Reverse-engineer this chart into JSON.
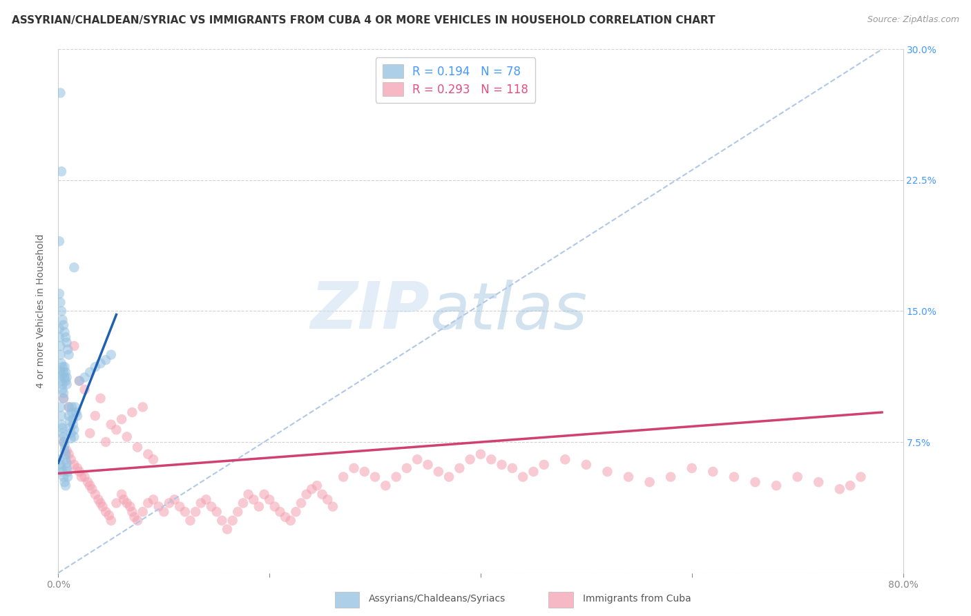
{
  "title": "ASSYRIAN/CHALDEAN/SYRIAC VS IMMIGRANTS FROM CUBA 4 OR MORE VEHICLES IN HOUSEHOLD CORRELATION CHART",
  "source": "Source: ZipAtlas.com",
  "ylabel": "4 or more Vehicles in Household",
  "legend_entry_blue": "R = 0.194   N = 78",
  "legend_entry_pink": "R = 0.293   N = 118",
  "watermark_zip": "ZIP",
  "watermark_atlas": "atlas",
  "blue_color": "#92c0e0",
  "pink_color": "#f4a0b0",
  "blue_line_color": "#2060b0",
  "pink_line_color": "#d04070",
  "dashed_line_color": "#b0c8e8",
  "background_color": "#ffffff",
  "grid_color": "#cccccc",
  "blue_scatter_x": [
    0.002,
    0.003,
    0.003,
    0.004,
    0.004,
    0.005,
    0.005,
    0.006,
    0.006,
    0.007,
    0.007,
    0.008,
    0.008,
    0.009,
    0.009,
    0.01,
    0.01,
    0.011,
    0.011,
    0.012,
    0.012,
    0.013,
    0.013,
    0.014,
    0.014,
    0.015,
    0.015,
    0.016,
    0.017,
    0.018,
    0.002,
    0.003,
    0.003,
    0.004,
    0.004,
    0.005,
    0.005,
    0.006,
    0.007,
    0.008,
    0.001,
    0.001,
    0.002,
    0.002,
    0.003,
    0.004,
    0.005,
    0.006,
    0.007,
    0.008,
    0.001,
    0.002,
    0.003,
    0.004,
    0.005,
    0.006,
    0.007,
    0.008,
    0.009,
    0.01,
    0.001,
    0.002,
    0.003,
    0.004,
    0.005,
    0.006,
    0.007,
    0.02,
    0.025,
    0.03,
    0.035,
    0.04,
    0.045,
    0.05,
    0.002,
    0.003,
    0.001,
    0.015
  ],
  "blue_scatter_y": [
    0.095,
    0.09,
    0.085,
    0.083,
    0.08,
    0.078,
    0.075,
    0.073,
    0.07,
    0.068,
    0.065,
    0.063,
    0.06,
    0.058,
    0.055,
    0.095,
    0.09,
    0.087,
    0.083,
    0.08,
    0.077,
    0.095,
    0.092,
    0.088,
    0.085,
    0.082,
    0.078,
    0.095,
    0.092,
    0.09,
    0.115,
    0.113,
    0.11,
    0.108,
    0.105,
    0.103,
    0.1,
    0.118,
    0.115,
    0.112,
    0.14,
    0.135,
    0.13,
    0.125,
    0.12,
    0.118,
    0.115,
    0.112,
    0.11,
    0.108,
    0.16,
    0.155,
    0.15,
    0.145,
    0.142,
    0.138,
    0.135,
    0.132,
    0.128,
    0.125,
    0.065,
    0.062,
    0.06,
    0.058,
    0.055,
    0.052,
    0.05,
    0.11,
    0.112,
    0.115,
    0.118,
    0.12,
    0.122,
    0.125,
    0.275,
    0.23,
    0.19,
    0.175
  ],
  "pink_scatter_x": [
    0.005,
    0.008,
    0.01,
    0.012,
    0.015,
    0.018,
    0.02,
    0.022,
    0.025,
    0.028,
    0.03,
    0.032,
    0.035,
    0.038,
    0.04,
    0.042,
    0.045,
    0.048,
    0.05,
    0.055,
    0.06,
    0.062,
    0.065,
    0.068,
    0.07,
    0.072,
    0.075,
    0.08,
    0.085,
    0.09,
    0.095,
    0.1,
    0.105,
    0.11,
    0.115,
    0.12,
    0.125,
    0.13,
    0.135,
    0.14,
    0.145,
    0.15,
    0.155,
    0.16,
    0.165,
    0.17,
    0.175,
    0.18,
    0.185,
    0.19,
    0.195,
    0.2,
    0.205,
    0.21,
    0.215,
    0.22,
    0.225,
    0.23,
    0.235,
    0.24,
    0.245,
    0.25,
    0.255,
    0.26,
    0.27,
    0.28,
    0.29,
    0.3,
    0.31,
    0.32,
    0.33,
    0.34,
    0.35,
    0.36,
    0.37,
    0.38,
    0.39,
    0.4,
    0.41,
    0.42,
    0.43,
    0.44,
    0.45,
    0.46,
    0.48,
    0.5,
    0.52,
    0.54,
    0.56,
    0.58,
    0.6,
    0.62,
    0.64,
    0.66,
    0.68,
    0.7,
    0.72,
    0.74,
    0.75,
    0.76,
    0.005,
    0.01,
    0.015,
    0.02,
    0.025,
    0.03,
    0.035,
    0.04,
    0.045,
    0.05,
    0.055,
    0.06,
    0.065,
    0.07,
    0.075,
    0.08,
    0.085,
    0.09
  ],
  "pink_scatter_y": [
    0.075,
    0.07,
    0.068,
    0.065,
    0.062,
    0.06,
    0.058,
    0.055,
    0.055,
    0.052,
    0.05,
    0.048,
    0.045,
    0.042,
    0.04,
    0.038,
    0.035,
    0.033,
    0.03,
    0.04,
    0.045,
    0.042,
    0.04,
    0.038,
    0.035,
    0.032,
    0.03,
    0.035,
    0.04,
    0.042,
    0.038,
    0.035,
    0.04,
    0.042,
    0.038,
    0.035,
    0.03,
    0.035,
    0.04,
    0.042,
    0.038,
    0.035,
    0.03,
    0.025,
    0.03,
    0.035,
    0.04,
    0.045,
    0.042,
    0.038,
    0.045,
    0.042,
    0.038,
    0.035,
    0.032,
    0.03,
    0.035,
    0.04,
    0.045,
    0.048,
    0.05,
    0.045,
    0.042,
    0.038,
    0.055,
    0.06,
    0.058,
    0.055,
    0.05,
    0.055,
    0.06,
    0.065,
    0.062,
    0.058,
    0.055,
    0.06,
    0.065,
    0.068,
    0.065,
    0.062,
    0.06,
    0.055,
    0.058,
    0.062,
    0.065,
    0.062,
    0.058,
    0.055,
    0.052,
    0.055,
    0.06,
    0.058,
    0.055,
    0.052,
    0.05,
    0.055,
    0.052,
    0.048,
    0.05,
    0.055,
    0.1,
    0.095,
    0.13,
    0.11,
    0.105,
    0.08,
    0.09,
    0.1,
    0.075,
    0.085,
    0.082,
    0.088,
    0.078,
    0.092,
    0.072,
    0.095,
    0.068,
    0.065
  ],
  "blue_trend_x": [
    0.0,
    0.055
  ],
  "blue_trend_y": [
    0.063,
    0.148
  ],
  "pink_trend_x": [
    0.0,
    0.78
  ],
  "pink_trend_y": [
    0.057,
    0.092
  ],
  "dashed_trend_x": [
    0.0,
    0.78
  ],
  "dashed_trend_y": [
    0.0,
    0.3
  ],
  "xlim": [
    0.0,
    0.8
  ],
  "ylim": [
    0.0,
    0.3
  ],
  "yticks": [
    0.0,
    0.075,
    0.15,
    0.225,
    0.3
  ],
  "yticklabels_right": [
    "",
    "7.5%",
    "15.0%",
    "22.5%",
    "30.0%"
  ],
  "xticks": [
    0.0,
    0.2,
    0.4,
    0.6,
    0.8
  ],
  "xticklabels": [
    "0.0%",
    "",
    "",
    "",
    "80.0%"
  ],
  "title_fontsize": 11,
  "source_fontsize": 9,
  "tick_fontsize": 10,
  "right_tick_color": "#4499ff",
  "scatter_size": 110,
  "scatter_alpha": 0.55
}
